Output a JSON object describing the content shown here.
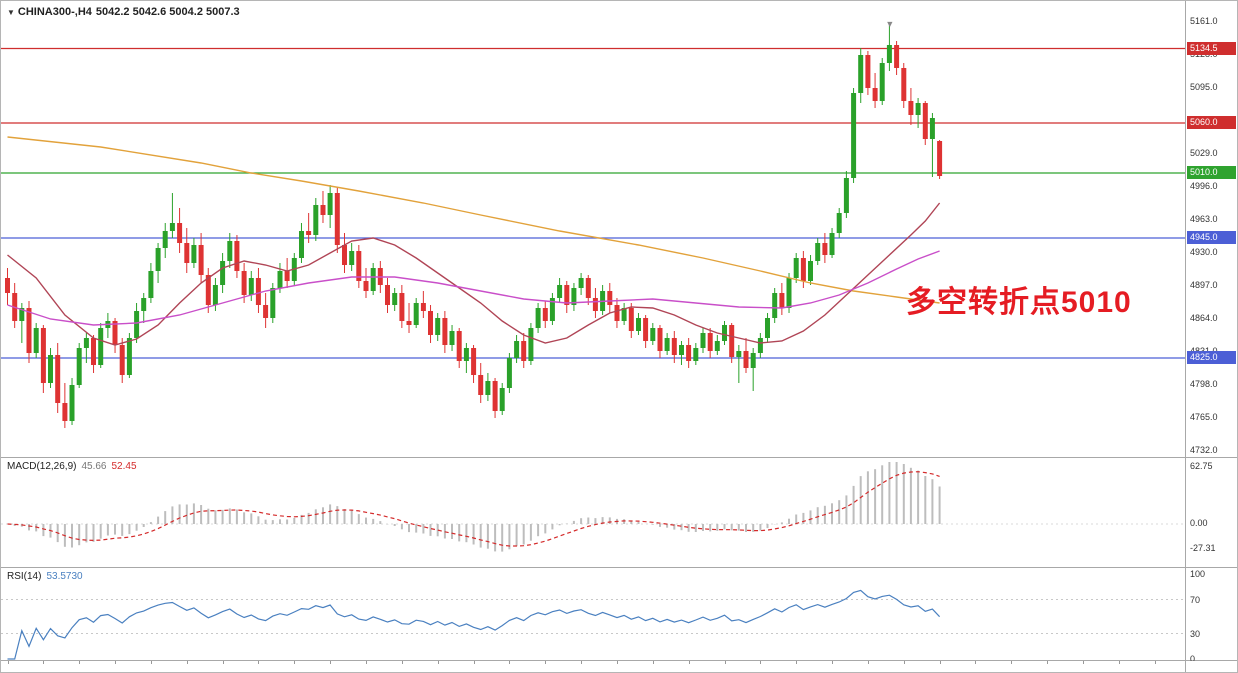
{
  "header": {
    "symbol_period": "CHINA300-,H4",
    "ohlc": "5042.2 5042.6 5004.2 5007.3"
  },
  "colors": {
    "bull": "#2aa12a",
    "bear": "#de3333",
    "axis_text": "#333333",
    "separator": "#a8a8a8"
  },
  "chart_data": {
    "type": "candlestick",
    "symbol": "CHINA300",
    "timeframe": "H4",
    "title": "CHINA300-,H4 5042.2 5042.6 5004.2 5007.3",
    "last_ohlc": {
      "open": 5042.2,
      "high": 5042.6,
      "low": 5004.2,
      "close": 5007.3
    },
    "price_axis": {
      "min": 4732.0,
      "max": 5161.0,
      "ticks": [
        5161.0,
        5128.0,
        5095.0,
        5062.0,
        5029.0,
        4996.0,
        4963.0,
        4930.0,
        4897.0,
        4864.0,
        4831.0,
        4798.0,
        4765.0,
        4732.0
      ]
    },
    "levels": [
      {
        "price": 5134.5,
        "label": "5134.5",
        "color": "#cf2e2e"
      },
      {
        "price": 5060.0,
        "label": "5060.0",
        "color": "#cf2e2e"
      },
      {
        "price": 5010.0,
        "label": "5010.0",
        "color": "#2fa32f"
      },
      {
        "price": 4945.0,
        "label": "4945.0",
        "color": "#4c5fd6"
      },
      {
        "price": 4825.0,
        "label": "4825.0",
        "color": "#4c5fd6"
      }
    ],
    "annotation": {
      "text": "多空转折点5010",
      "color": "#e51c23"
    },
    "marker": {
      "bar": 123,
      "glyph": "▼"
    },
    "candles": [
      [
        4905,
        4915,
        4878,
        4890
      ],
      [
        4890,
        4900,
        4855,
        4862
      ],
      [
        4862,
        4880,
        4840,
        4875
      ],
      [
        4875,
        4882,
        4820,
        4830
      ],
      [
        4830,
        4860,
        4825,
        4855
      ],
      [
        4855,
        4858,
        4790,
        4800
      ],
      [
        4800,
        4835,
        4795,
        4828
      ],
      [
        4828,
        4840,
        4770,
        4780
      ],
      [
        4780,
        4800,
        4755,
        4762
      ],
      [
        4762,
        4805,
        4758,
        4798
      ],
      [
        4798,
        4840,
        4795,
        4835
      ],
      [
        4835,
        4850,
        4820,
        4845
      ],
      [
        4845,
        4848,
        4810,
        4818
      ],
      [
        4818,
        4860,
        4815,
        4855
      ],
      [
        4855,
        4870,
        4845,
        4862
      ],
      [
        4862,
        4865,
        4830,
        4838
      ],
      [
        4838,
        4845,
        4800,
        4808
      ],
      [
        4808,
        4850,
        4805,
        4845
      ],
      [
        4845,
        4880,
        4840,
        4872
      ],
      [
        4872,
        4890,
        4860,
        4885
      ],
      [
        4885,
        4920,
        4880,
        4912
      ],
      [
        4912,
        4940,
        4900,
        4935
      ],
      [
        4935,
        4960,
        4925,
        4952
      ],
      [
        4952,
        4990,
        4945,
        4960
      ],
      [
        4960,
        4975,
        4930,
        4940
      ],
      [
        4940,
        4955,
        4910,
        4920
      ],
      [
        4920,
        4945,
        4915,
        4938
      ],
      [
        4938,
        4950,
        4900,
        4908
      ],
      [
        4908,
        4915,
        4870,
        4878
      ],
      [
        4878,
        4905,
        4872,
        4898
      ],
      [
        4898,
        4930,
        4890,
        4922
      ],
      [
        4922,
        4950,
        4915,
        4942
      ],
      [
        4942,
        4948,
        4905,
        4912
      ],
      [
        4912,
        4920,
        4880,
        4888
      ],
      [
        4888,
        4912,
        4882,
        4905
      ],
      [
        4905,
        4915,
        4870,
        4878
      ],
      [
        4878,
        4890,
        4855,
        4865
      ],
      [
        4865,
        4900,
        4860,
        4895
      ],
      [
        4895,
        4920,
        4890,
        4912
      ],
      [
        4912,
        4925,
        4895,
        4902
      ],
      [
        4902,
        4930,
        4898,
        4925
      ],
      [
        4925,
        4960,
        4920,
        4952
      ],
      [
        4952,
        4970,
        4940,
        4948
      ],
      [
        4948,
        4985,
        4942,
        4978
      ],
      [
        4978,
        4992,
        4960,
        4968
      ],
      [
        4968,
        4998,
        4955,
        4990
      ],
      [
        4990,
        4995,
        4930,
        4938
      ],
      [
        4938,
        4950,
        4910,
        4918
      ],
      [
        4918,
        4940,
        4912,
        4932
      ],
      [
        4932,
        4938,
        4895,
        4902
      ],
      [
        4902,
        4915,
        4885,
        4892
      ],
      [
        4892,
        4920,
        4888,
        4915
      ],
      [
        4915,
        4922,
        4890,
        4898
      ],
      [
        4898,
        4905,
        4870,
        4878
      ],
      [
        4878,
        4895,
        4872,
        4890
      ],
      [
        4890,
        4898,
        4855,
        4862
      ],
      [
        4862,
        4880,
        4850,
        4858
      ],
      [
        4858,
        4885,
        4855,
        4880
      ],
      [
        4880,
        4892,
        4865,
        4872
      ],
      [
        4872,
        4878,
        4840,
        4848
      ],
      [
        4848,
        4870,
        4842,
        4865
      ],
      [
        4865,
        4872,
        4830,
        4838
      ],
      [
        4838,
        4858,
        4832,
        4852
      ],
      [
        4852,
        4855,
        4815,
        4822
      ],
      [
        4822,
        4840,
        4810,
        4835
      ],
      [
        4835,
        4838,
        4800,
        4808
      ],
      [
        4808,
        4820,
        4780,
        4788
      ],
      [
        4788,
        4810,
        4782,
        4802
      ],
      [
        4802,
        4805,
        4765,
        4772
      ],
      [
        4772,
        4800,
        4768,
        4795
      ],
      [
        4795,
        4830,
        4790,
        4825
      ],
      [
        4825,
        4848,
        4820,
        4842
      ],
      [
        4842,
        4850,
        4815,
        4822
      ],
      [
        4822,
        4860,
        4818,
        4855
      ],
      [
        4855,
        4880,
        4850,
        4875
      ],
      [
        4875,
        4882,
        4855,
        4862
      ],
      [
        4862,
        4890,
        4858,
        4885
      ],
      [
        4885,
        4905,
        4880,
        4898
      ],
      [
        4898,
        4902,
        4870,
        4878
      ],
      [
        4878,
        4900,
        4872,
        4895
      ],
      [
        4895,
        4910,
        4888,
        4905
      ],
      [
        4905,
        4908,
        4878,
        4885
      ],
      [
        4885,
        4895,
        4865,
        4872
      ],
      [
        4872,
        4898,
        4868,
        4892
      ],
      [
        4892,
        4900,
        4870,
        4878
      ],
      [
        4878,
        4885,
        4855,
        4862
      ],
      [
        4862,
        4880,
        4858,
        4875
      ],
      [
        4875,
        4880,
        4845,
        4852
      ],
      [
        4852,
        4870,
        4848,
        4865
      ],
      [
        4865,
        4868,
        4835,
        4842
      ],
      [
        4842,
        4860,
        4838,
        4855
      ],
      [
        4855,
        4858,
        4825,
        4832
      ],
      [
        4832,
        4850,
        4828,
        4845
      ],
      [
        4845,
        4852,
        4820,
        4828
      ],
      [
        4828,
        4842,
        4818,
        4838
      ],
      [
        4838,
        4845,
        4815,
        4822
      ],
      [
        4822,
        4840,
        4818,
        4835
      ],
      [
        4835,
        4855,
        4830,
        4850
      ],
      [
        4850,
        4855,
        4825,
        4832
      ],
      [
        4832,
        4848,
        4828,
        4842
      ],
      [
        4842,
        4862,
        4838,
        4858
      ],
      [
        4858,
        4860,
        4820,
        4826
      ],
      [
        4826,
        4838,
        4800,
        4832
      ],
      [
        4832,
        4845,
        4810,
        4815
      ],
      [
        4815,
        4835,
        4792,
        4830
      ],
      [
        4830,
        4850,
        4825,
        4845
      ],
      [
        4845,
        4870,
        4840,
        4865
      ],
      [
        4865,
        4895,
        4860,
        4890
      ],
      [
        4890,
        4900,
        4868,
        4875
      ],
      [
        4875,
        4910,
        4870,
        4905
      ],
      [
        4905,
        4930,
        4900,
        4925
      ],
      [
        4925,
        4932,
        4895,
        4902
      ],
      [
        4902,
        4928,
        4898,
        4922
      ],
      [
        4922,
        4945,
        4918,
        4940
      ],
      [
        4940,
        4950,
        4920,
        4928
      ],
      [
        4928,
        4955,
        4925,
        4950
      ],
      [
        4950,
        4975,
        4945,
        4970
      ],
      [
        4970,
        5012,
        4965,
        5005
      ],
      [
        5005,
        5095,
        5000,
        5090
      ],
      [
        5090,
        5135,
        5080,
        5128
      ],
      [
        5128,
        5132,
        5088,
        5095
      ],
      [
        5095,
        5110,
        5075,
        5082
      ],
      [
        5082,
        5125,
        5078,
        5120
      ],
      [
        5120,
        5161,
        5112,
        5138
      ],
      [
        5138,
        5142,
        5108,
        5115
      ],
      [
        5115,
        5120,
        5075,
        5082
      ],
      [
        5082,
        5095,
        5058,
        5068
      ],
      [
        5068,
        5085,
        5055,
        5080
      ],
      [
        5080,
        5082,
        5038,
        5044
      ],
      [
        5044,
        5070,
        5006,
        5065
      ],
      [
        5042,
        5043,
        5004,
        5007
      ]
    ],
    "overlays": [
      {
        "name": "ma-slow-orange",
        "color": "#e2a23b",
        "points": [
          [
            0,
            5046
          ],
          [
            13,
            5036
          ],
          [
            27,
            5020
          ],
          [
            34,
            5010
          ],
          [
            41,
            5002
          ],
          [
            49,
            4992
          ],
          [
            58,
            4980
          ],
          [
            66,
            4968
          ],
          [
            77,
            4952
          ],
          [
            88,
            4938
          ],
          [
            97,
            4925
          ],
          [
            105,
            4912
          ],
          [
            112,
            4900
          ],
          [
            118,
            4892
          ],
          [
            124,
            4886
          ],
          [
            130,
            4880
          ]
        ]
      },
      {
        "name": "ma-mid-darkred",
        "color": "#b04556",
        "points": [
          [
            0,
            4928
          ],
          [
            4,
            4905
          ],
          [
            8,
            4868
          ],
          [
            12,
            4845
          ],
          [
            15,
            4838
          ],
          [
            18,
            4844
          ],
          [
            21,
            4858
          ],
          [
            24,
            4880
          ],
          [
            27,
            4900
          ],
          [
            30,
            4915
          ],
          [
            33,
            4922
          ],
          [
            36,
            4918
          ],
          [
            39,
            4912
          ],
          [
            42,
            4918
          ],
          [
            45,
            4930
          ],
          [
            48,
            4942
          ],
          [
            51,
            4945
          ],
          [
            54,
            4938
          ],
          [
            57,
            4925
          ],
          [
            60,
            4910
          ],
          [
            63,
            4895
          ],
          [
            66,
            4880
          ],
          [
            69,
            4862
          ],
          [
            72,
            4848
          ],
          [
            75,
            4840
          ],
          [
            78,
            4845
          ],
          [
            81,
            4858
          ],
          [
            84,
            4870
          ],
          [
            87,
            4876
          ],
          [
            90,
            4875
          ],
          [
            93,
            4868
          ],
          [
            96,
            4858
          ],
          [
            99,
            4850
          ],
          [
            102,
            4845
          ],
          [
            105,
            4840
          ],
          [
            108,
            4842
          ],
          [
            111,
            4852
          ],
          [
            114,
            4868
          ],
          [
            117,
            4888
          ],
          [
            120,
            4908
          ],
          [
            123,
            4928
          ],
          [
            126,
            4948
          ],
          [
            128,
            4962
          ],
          [
            130,
            4980
          ]
        ]
      },
      {
        "name": "ma-smooth-magenta",
        "color": "#c94fc9",
        "points": [
          [
            0,
            4878
          ],
          [
            6,
            4864
          ],
          [
            12,
            4858
          ],
          [
            18,
            4860
          ],
          [
            24,
            4868
          ],
          [
            30,
            4880
          ],
          [
            36,
            4892
          ],
          [
            42,
            4900
          ],
          [
            48,
            4906
          ],
          [
            54,
            4906
          ],
          [
            60,
            4900
          ],
          [
            66,
            4892
          ],
          [
            72,
            4884
          ],
          [
            78,
            4880
          ],
          [
            84,
            4882
          ],
          [
            90,
            4884
          ],
          [
            96,
            4880
          ],
          [
            102,
            4876
          ],
          [
            108,
            4875
          ],
          [
            112,
            4880
          ],
          [
            116,
            4888
          ],
          [
            120,
            4900
          ],
          [
            124,
            4914
          ],
          [
            127,
            4924
          ],
          [
            130,
            4932
          ]
        ]
      }
    ],
    "macd": {
      "name": "MACD(12,26,9)",
      "value_main": "45.66",
      "value_signal": "52.45",
      "params": {
        "fast": 12,
        "slow": 26,
        "signal": 9
      },
      "axis_ticks": [
        "62.75",
        "0.00",
        "-27.31"
      ],
      "hist_color": "#bdbdbd",
      "signal_color": "#d42a2a"
    },
    "rsi": {
      "name": "RSI(14)",
      "value": "53.5730",
      "period": 14,
      "axis_ticks": [
        100,
        70,
        30,
        0
      ],
      "levels": [
        70,
        30
      ],
      "line_color": "#4a80c0"
    }
  }
}
